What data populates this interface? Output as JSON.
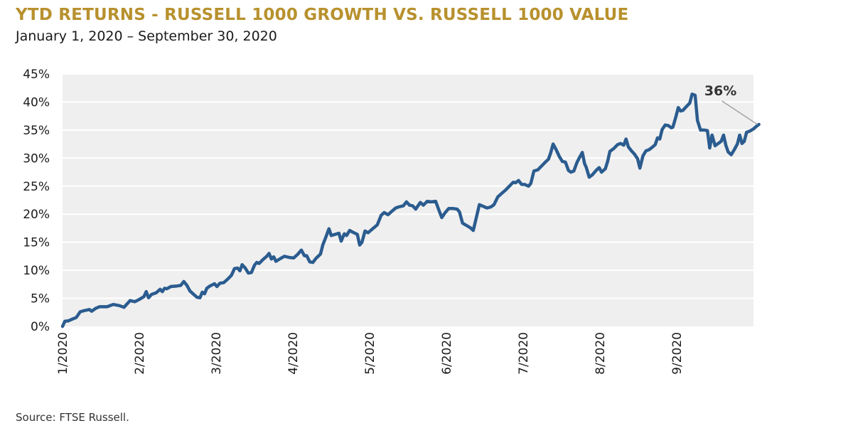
{
  "header": {
    "title": "YTD RETURNS - RUSSELL 1000 GROWTH VS. RUSSELL 1000 VALUE",
    "subtitle": "January 1, 2020 – September 30, 2020"
  },
  "footer": {
    "source": "Source: FTSE Russell."
  },
  "colors": {
    "title": "#B8912E",
    "line": "#2B5C8F",
    "plot_background": "#EFEFEF",
    "gridline": "#FFFFFF",
    "annotation_line": "#A6A6A6"
  },
  "chart_data": {
    "type": "line",
    "title": "YTD RETURNS - RUSSELL 1000 GROWTH VS. RUSSELL 1000 VALUE",
    "subtitle": "January 1, 2020 – September 30, 2020",
    "xlabel": "",
    "ylabel": "",
    "grid": true,
    "xlim": [
      0,
      9
    ],
    "ylim": [
      0,
      45
    ],
    "x_ticks": [
      0,
      1,
      2,
      3,
      4,
      5,
      6,
      7,
      8
    ],
    "x_tick_labels": [
      "1/2020",
      "2/2020",
      "3/2020",
      "4/2020",
      "5/2020",
      "6/2020",
      "7/2020",
      "8/2020",
      "9/2020"
    ],
    "y_ticks": [
      0,
      5,
      10,
      15,
      20,
      25,
      30,
      35,
      40,
      45
    ],
    "y_tick_labels": [
      "0%",
      "5%",
      "10%",
      "15%",
      "20%",
      "25%",
      "30%",
      "35%",
      "40%",
      "45%"
    ],
    "series": [
      {
        "name": "YTD Returns",
        "x_unit": "months since Jan 1, 2020",
        "y_unit": "percent",
        "points": [
          [
            0.0,
            0.0
          ],
          [
            0.03,
            0.9
          ],
          [
            0.08,
            1.0
          ],
          [
            0.13,
            1.3
          ],
          [
            0.18,
            1.6
          ],
          [
            0.23,
            2.6
          ],
          [
            0.28,
            2.8
          ],
          [
            0.35,
            3.0
          ],
          [
            0.38,
            2.7
          ],
          [
            0.43,
            3.2
          ],
          [
            0.48,
            3.5
          ],
          [
            0.58,
            3.5
          ],
          [
            0.66,
            3.9
          ],
          [
            0.74,
            3.7
          ],
          [
            0.8,
            3.4
          ],
          [
            0.88,
            4.6
          ],
          [
            0.94,
            4.4
          ],
          [
            1.0,
            4.8
          ],
          [
            1.06,
            5.3
          ],
          [
            1.09,
            6.2
          ],
          [
            1.12,
            5.1
          ],
          [
            1.16,
            5.7
          ],
          [
            1.22,
            6.0
          ],
          [
            1.27,
            6.6
          ],
          [
            1.3,
            6.2
          ],
          [
            1.33,
            6.8
          ],
          [
            1.36,
            6.7
          ],
          [
            1.41,
            7.1
          ],
          [
            1.49,
            7.2
          ],
          [
            1.54,
            7.3
          ],
          [
            1.58,
            8.0
          ],
          [
            1.62,
            7.3
          ],
          [
            1.66,
            6.3
          ],
          [
            1.7,
            5.8
          ],
          [
            1.75,
            5.2
          ],
          [
            1.79,
            5.1
          ],
          [
            1.82,
            6.1
          ],
          [
            1.85,
            5.8
          ],
          [
            1.88,
            6.8
          ],
          [
            1.92,
            7.2
          ],
          [
            1.98,
            7.6
          ],
          [
            2.01,
            7.1
          ],
          [
            2.05,
            7.7
          ],
          [
            2.1,
            7.8
          ],
          [
            2.15,
            8.4
          ],
          [
            2.2,
            9.1
          ],
          [
            2.24,
            10.3
          ],
          [
            2.28,
            10.4
          ],
          [
            2.31,
            9.9
          ],
          [
            2.34,
            11.0
          ],
          [
            2.38,
            10.4
          ],
          [
            2.42,
            9.5
          ],
          [
            2.46,
            9.6
          ],
          [
            2.5,
            10.9
          ],
          [
            2.53,
            11.4
          ],
          [
            2.56,
            11.2
          ],
          [
            2.61,
            11.9
          ],
          [
            2.66,
            12.5
          ],
          [
            2.69,
            13.0
          ],
          [
            2.72,
            12.0
          ],
          [
            2.75,
            12.4
          ],
          [
            2.78,
            11.6
          ],
          [
            2.84,
            12.1
          ],
          [
            2.89,
            12.5
          ],
          [
            2.95,
            12.3
          ],
          [
            3.01,
            12.2
          ],
          [
            3.06,
            12.8
          ],
          [
            3.11,
            13.6
          ],
          [
            3.15,
            12.6
          ],
          [
            3.18,
            12.6
          ],
          [
            3.22,
            11.5
          ],
          [
            3.26,
            11.4
          ],
          [
            3.3,
            12.1
          ],
          [
            3.36,
            12.9
          ],
          [
            3.39,
            14.5
          ],
          [
            3.43,
            15.9
          ],
          [
            3.47,
            17.4
          ],
          [
            3.5,
            16.2
          ],
          [
            3.55,
            16.4
          ],
          [
            3.6,
            16.6
          ],
          [
            3.63,
            15.2
          ],
          [
            3.67,
            16.5
          ],
          [
            3.7,
            16.2
          ],
          [
            3.74,
            17.1
          ],
          [
            3.78,
            16.8
          ],
          [
            3.84,
            16.4
          ],
          [
            3.87,
            14.5
          ],
          [
            3.9,
            15.0
          ],
          [
            3.94,
            17.0
          ],
          [
            3.98,
            16.7
          ],
          [
            4.04,
            17.4
          ],
          [
            4.1,
            18.1
          ],
          [
            4.15,
            19.8
          ],
          [
            4.19,
            20.3
          ],
          [
            4.24,
            19.9
          ],
          [
            4.28,
            20.4
          ],
          [
            4.34,
            21.1
          ],
          [
            4.38,
            21.3
          ],
          [
            4.44,
            21.5
          ],
          [
            4.48,
            22.2
          ],
          [
            4.52,
            21.6
          ],
          [
            4.56,
            21.5
          ],
          [
            4.6,
            20.9
          ],
          [
            4.66,
            22.1
          ],
          [
            4.7,
            21.6
          ],
          [
            4.75,
            22.3
          ],
          [
            4.8,
            22.2
          ],
          [
            4.86,
            22.3
          ],
          [
            4.9,
            20.8
          ],
          [
            4.94,
            19.4
          ],
          [
            4.98,
            20.2
          ],
          [
            5.03,
            21.0
          ],
          [
            5.09,
            21.0
          ],
          [
            5.14,
            20.9
          ],
          [
            5.17,
            20.4
          ],
          [
            5.21,
            18.4
          ],
          [
            5.26,
            18.0
          ],
          [
            5.31,
            17.6
          ],
          [
            5.35,
            17.1
          ],
          [
            5.39,
            19.4
          ],
          [
            5.43,
            21.7
          ],
          [
            5.48,
            21.4
          ],
          [
            5.53,
            21.1
          ],
          [
            5.58,
            21.3
          ],
          [
            5.62,
            21.7
          ],
          [
            5.67,
            23.1
          ],
          [
            5.72,
            23.7
          ],
          [
            5.77,
            24.3
          ],
          [
            5.82,
            25.0
          ],
          [
            5.87,
            25.7
          ],
          [
            5.9,
            25.6
          ],
          [
            5.94,
            26.0
          ],
          [
            5.98,
            25.3
          ],
          [
            6.02,
            25.3
          ],
          [
            6.07,
            25.0
          ],
          [
            6.1,
            25.5
          ],
          [
            6.14,
            27.7
          ],
          [
            6.19,
            27.9
          ],
          [
            6.24,
            28.6
          ],
          [
            6.29,
            29.3
          ],
          [
            6.33,
            29.8
          ],
          [
            6.36,
            31.0
          ],
          [
            6.39,
            32.5
          ],
          [
            6.43,
            31.5
          ],
          [
            6.47,
            30.3
          ],
          [
            6.51,
            29.4
          ],
          [
            6.55,
            29.3
          ],
          [
            6.59,
            27.8
          ],
          [
            6.62,
            27.5
          ],
          [
            6.66,
            27.7
          ],
          [
            6.7,
            29.2
          ],
          [
            6.73,
            30.0
          ],
          [
            6.77,
            31.0
          ],
          [
            6.8,
            29.0
          ],
          [
            6.82,
            28.4
          ],
          [
            6.86,
            26.6
          ],
          [
            6.9,
            27.0
          ],
          [
            6.95,
            27.8
          ],
          [
            6.99,
            28.3
          ],
          [
            7.02,
            27.5
          ],
          [
            7.07,
            28.1
          ],
          [
            7.1,
            29.4
          ],
          [
            7.13,
            31.2
          ],
          [
            7.18,
            31.7
          ],
          [
            7.23,
            32.4
          ],
          [
            7.27,
            32.6
          ],
          [
            7.31,
            32.3
          ],
          [
            7.34,
            33.4
          ],
          [
            7.37,
            32.0
          ],
          [
            7.41,
            31.3
          ],
          [
            7.45,
            30.7
          ],
          [
            7.49,
            29.9
          ],
          [
            7.52,
            28.2
          ],
          [
            7.56,
            30.4
          ],
          [
            7.6,
            31.3
          ],
          [
            7.64,
            31.5
          ],
          [
            7.67,
            31.8
          ],
          [
            7.72,
            32.4
          ],
          [
            7.75,
            33.6
          ],
          [
            7.78,
            33.4
          ],
          [
            7.81,
            35.1
          ],
          [
            7.85,
            35.9
          ],
          [
            7.89,
            35.8
          ],
          [
            7.93,
            35.4
          ],
          [
            7.95,
            35.5
          ],
          [
            7.99,
            37.4
          ],
          [
            8.02,
            39.0
          ],
          [
            8.05,
            38.4
          ],
          [
            8.08,
            38.5
          ],
          [
            8.12,
            39.1
          ],
          [
            8.17,
            39.8
          ],
          [
            8.2,
            41.4
          ],
          [
            8.24,
            41.2
          ],
          [
            8.27,
            36.7
          ],
          [
            8.31,
            35.0
          ],
          [
            8.36,
            35.0
          ],
          [
            8.4,
            34.9
          ],
          [
            8.43,
            31.8
          ],
          [
            8.46,
            34.1
          ],
          [
            8.5,
            32.2
          ],
          [
            8.54,
            32.6
          ],
          [
            8.58,
            33.0
          ],
          [
            8.61,
            34.1
          ],
          [
            8.64,
            32.3
          ],
          [
            8.67,
            31.1
          ],
          [
            8.71,
            30.6
          ],
          [
            8.75,
            31.5
          ],
          [
            8.79,
            32.5
          ],
          [
            8.82,
            34.1
          ],
          [
            8.85,
            32.6
          ],
          [
            8.88,
            33.0
          ],
          [
            8.91,
            34.6
          ],
          [
            8.95,
            34.8
          ],
          [
            9.0,
            35.2
          ],
          [
            9.04,
            35.7
          ],
          [
            9.07,
            36.0
          ]
        ]
      }
    ],
    "annotations": [
      {
        "text": "36%",
        "target": [
          9.07,
          36.0
        ]
      }
    ]
  }
}
